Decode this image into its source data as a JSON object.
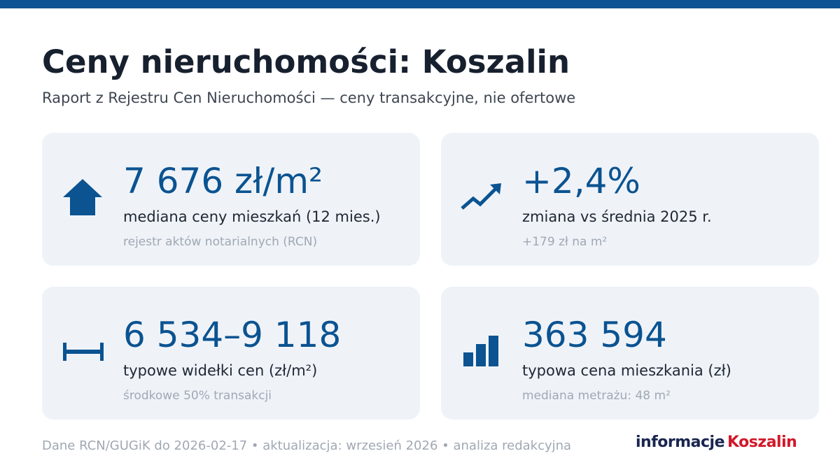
{
  "header": {
    "title": "Ceny nieruchomości: Koszalin",
    "subtitle": "Raport z Rejestru Cen Nieruchomości — ceny transakcyjne, nie ofertowe"
  },
  "cards": [
    {
      "value": "7 676 zł/m²",
      "label": "mediana ceny mieszkań (12 mies.)",
      "note": "rejestr aktów notarialnych (RCN)"
    },
    {
      "value": "+2,4%",
      "label": "zmiana vs średnia 2025 r.",
      "note": "+179 zł na m²"
    },
    {
      "value": "6 534–9 118",
      "label": "typowe widełki cen (zł/m²)",
      "note": "środkowe 50% transakcji"
    },
    {
      "value": "363 594",
      "label": "typowa cena mieszkania (zł)",
      "note": "mediana metrażu: 48 m²"
    }
  ],
  "footer": {
    "text": "Dane RCN/GUGiK do 2026-02-17 • aktualizacja: wrzesień 2026 • analiza redakcyjna",
    "logo_left": "informacje",
    "logo_right": "Koszalin"
  }
}
